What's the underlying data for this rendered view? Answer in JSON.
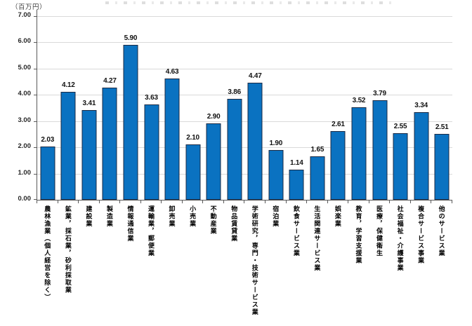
{
  "unit_label": "（百万円）",
  "colors": {
    "bar_fill": "#0a72c1",
    "bar_border": "#1b2a44",
    "gridline": "#d9d9d9",
    "axis": "#595959",
    "value_label_text": "#111111"
  },
  "chart_data": {
    "type": "bar",
    "title": "",
    "unit_label": "（百万円）",
    "categories": [
      "農林漁業（個人経営を除く）",
      "鉱業，採石業，砂利採取業",
      "建設業",
      "製造業",
      "情報通信業",
      "運輸業，郵便業",
      "卸売業",
      "小売業",
      "不動産業",
      "物品賃貸業",
      "学術研究，専門・技術サービス業",
      "宿泊業",
      "飲食サービス業",
      "生活関連サービス業",
      "娯楽業",
      "教育，学習支援業",
      "医療，保健衛生",
      "社会福祉・介護事業",
      "複合サービス事業",
      "他のサービス業"
    ],
    "values": [
      2.03,
      4.12,
      3.41,
      4.27,
      5.9,
      3.63,
      4.63,
      2.1,
      2.9,
      3.86,
      4.47,
      1.9,
      1.14,
      1.65,
      2.61,
      3.52,
      3.79,
      2.55,
      3.34,
      2.51
    ],
    "data_labels": [
      "2.03",
      "4.12",
      "3.41",
      "4.27",
      "5.90",
      "3.63",
      "4.63",
      "2.10",
      "2.90",
      "3.86",
      "4.47",
      "1.90",
      "1.14",
      "1.65",
      "2.61",
      "3.52",
      "3.79",
      "2.55",
      "3.34",
      "2.51"
    ],
    "xlabel": "",
    "ylabel": "（百万円）",
    "ylim": [
      0,
      7
    ],
    "ytick_step": 1.0,
    "ytick_labels": [
      "0.00",
      "1.00",
      "2.00",
      "3.00",
      "4.00",
      "5.00",
      "6.00",
      "7.00"
    ],
    "grid": true,
    "legend": "none"
  }
}
